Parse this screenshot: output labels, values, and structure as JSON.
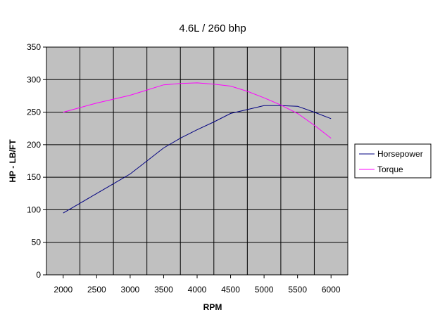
{
  "chart_data": {
    "type": "line",
    "title": "4.6L / 260 bhp",
    "xlabel": "RPM",
    "ylabel": "HP - LB/FT",
    "categories": [
      "2000",
      "2500",
      "3000",
      "3500",
      "4000",
      "4500",
      "5000",
      "5500",
      "6000"
    ],
    "x": [
      2000,
      2250,
      2500,
      2750,
      3000,
      3250,
      3500,
      3750,
      4000,
      4250,
      4500,
      4750,
      5000,
      5250,
      5500,
      5750,
      6000
    ],
    "ylim": [
      0,
      350
    ],
    "yticks": [
      0,
      50,
      100,
      150,
      200,
      250,
      300,
      350
    ],
    "grid": true,
    "legend": "right",
    "series": [
      {
        "name": "Horsepower",
        "color": "#000080",
        "values": [
          95,
          110,
          125,
          140,
          155,
          175,
          195,
          210,
          223,
          235,
          248,
          254,
          260,
          260,
          259,
          250,
          240
        ]
      },
      {
        "name": "Torque",
        "color": "#ff00ff",
        "values": [
          250,
          257,
          264,
          270,
          276,
          284,
          292,
          294,
          295,
          293,
          290,
          282,
          272,
          261,
          248,
          230,
          210
        ]
      }
    ]
  },
  "colors": {
    "plot_background": "#c0c0c0",
    "gridline": "#000000"
  }
}
